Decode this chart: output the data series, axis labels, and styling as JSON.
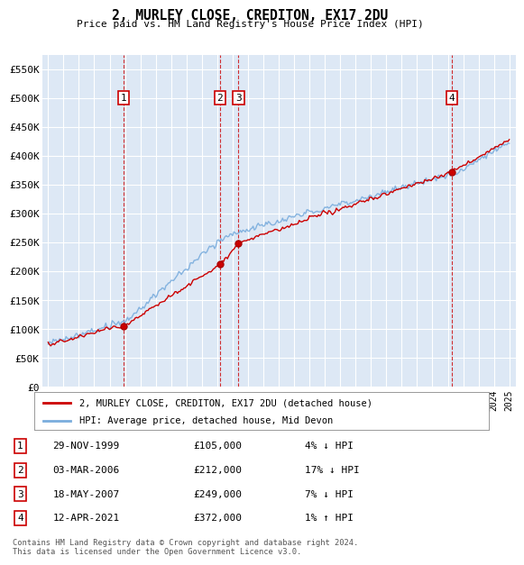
{
  "title": "2, MURLEY CLOSE, CREDITON, EX17 2DU",
  "subtitle": "Price paid vs. HM Land Registry's House Price Index (HPI)",
  "ylim": [
    0,
    575000
  ],
  "yticks": [
    0,
    50000,
    100000,
    150000,
    200000,
    250000,
    300000,
    350000,
    400000,
    450000,
    500000,
    550000
  ],
  "ytick_labels": [
    "£0",
    "£50K",
    "£100K",
    "£150K",
    "£200K",
    "£250K",
    "£300K",
    "£350K",
    "£400K",
    "£450K",
    "£500K",
    "£550K"
  ],
  "bg_color": "#dde8f5",
  "grid_color": "#ffffff",
  "line_color_property": "#cc0000",
  "line_color_hpi": "#7aaddd",
  "transactions": [
    {
      "num": 1,
      "year": 1999.91,
      "price": 105000,
      "date": "29-NOV-1999",
      "hpi_diff": "4% ↓ HPI"
    },
    {
      "num": 2,
      "year": 2006.17,
      "price": 212000,
      "date": "03-MAR-2006",
      "hpi_diff": "17% ↓ HPI"
    },
    {
      "num": 3,
      "year": 2007.38,
      "price": 249000,
      "date": "18-MAY-2007",
      "hpi_diff": "7% ↓ HPI"
    },
    {
      "num": 4,
      "year": 2021.28,
      "price": 372000,
      "date": "12-APR-2021",
      "hpi_diff": "1% ↑ HPI"
    }
  ],
  "legend_property": "2, MURLEY CLOSE, CREDITON, EX17 2DU (detached house)",
  "legend_hpi": "HPI: Average price, detached house, Mid Devon",
  "footer": "Contains HM Land Registry data © Crown copyright and database right 2024.\nThis data is licensed under the Open Government Licence v3.0.",
  "xmin": 1994.6,
  "xmax": 2025.4,
  "table_rows": [
    [
      1,
      "29-NOV-1999",
      "£105,000",
      "4% ↓ HPI"
    ],
    [
      2,
      "03-MAR-2006",
      "£212,000",
      "17% ↓ HPI"
    ],
    [
      3,
      "18-MAY-2007",
      "£249,000",
      "7% ↓ HPI"
    ],
    [
      4,
      "12-APR-2021",
      "£372,000",
      "1% ↑ HPI"
    ]
  ]
}
